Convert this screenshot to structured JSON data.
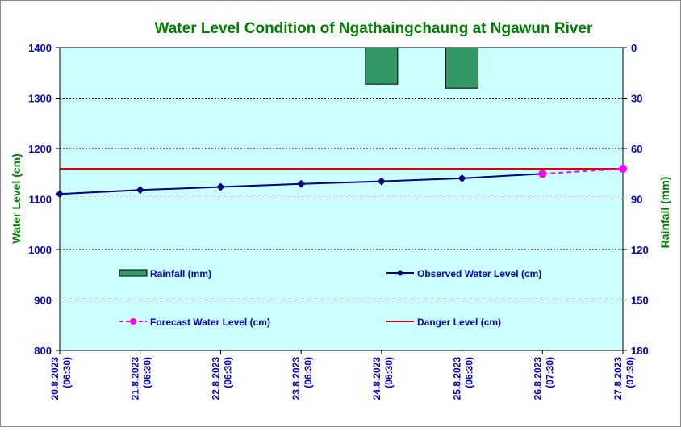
{
  "chart_data": {
    "type": "line",
    "title": "Water Level Condition of  Ngathaingchaung at Ngawun River",
    "ylabel": "Water Level (cm)",
    "y2label": "Rainfall (mm)",
    "ylim": [
      800,
      1400
    ],
    "yticks": [
      800,
      900,
      1000,
      1100,
      1200,
      1300,
      1400
    ],
    "y2lim": [
      180,
      0
    ],
    "y2ticks": [
      0,
      30,
      60,
      90,
      120,
      150,
      180
    ],
    "categories": [
      [
        "20.8.2023",
        "(06:30)"
      ],
      [
        "21.8.2023",
        "(06:30)"
      ],
      [
        "22.8.2023",
        "(06:30)"
      ],
      [
        "23.8.2023",
        "(06:30)"
      ],
      [
        "24.8.2023",
        "(06:30)"
      ],
      [
        "25.8.2023",
        "(06:30)"
      ],
      [
        "26.8.2023",
        "(07:30)"
      ],
      [
        "27.8.2023",
        "(07:30)"
      ]
    ],
    "series": [
      {
        "name": "Rainfall (mm)",
        "type": "bar",
        "axis": "right",
        "color": "#339966",
        "values": [
          null,
          null,
          null,
          null,
          21.7,
          24.1,
          null,
          null
        ]
      },
      {
        "name": "Observed Water Level (cm)",
        "type": "line",
        "color": "#000080",
        "values": [
          1110,
          1118,
          1124,
          1130,
          1135,
          1141,
          1150,
          null
        ]
      },
      {
        "name": "Forecast Water Level (cm)",
        "type": "line",
        "dashed": true,
        "color": "#ff00ff",
        "values": [
          null,
          null,
          null,
          null,
          null,
          null,
          1150,
          1160
        ]
      },
      {
        "name": "Danger Level (cm)",
        "type": "line",
        "color": "#dd0000",
        "values": [
          1160,
          1160,
          1160,
          1160,
          1160,
          1160,
          1160,
          1160
        ]
      }
    ],
    "grid": true,
    "legend": "inside-lower"
  }
}
